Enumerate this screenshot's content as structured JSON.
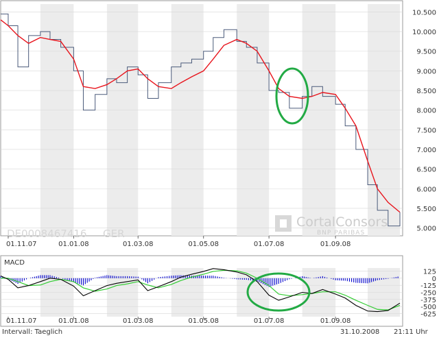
{
  "main_chart": {
    "isin": "DE0008467416",
    "exchange": "GER",
    "logo_brand": "CortalConsors",
    "logo_sub": "BNP PARIBAS",
    "y_ticks": [
      {
        "value": 10500,
        "label": "10.500"
      },
      {
        "value": 10000,
        "label": "10.000"
      },
      {
        "value": 9500,
        "label": "9.500"
      },
      {
        "value": 9000,
        "label": "9.000"
      },
      {
        "value": 8500,
        "label": "8.500"
      },
      {
        "value": 8000,
        "label": "8.000"
      },
      {
        "value": 7500,
        "label": "7.500"
      },
      {
        "value": 7000,
        "label": "7.000"
      },
      {
        "value": 6500,
        "label": "6.500"
      },
      {
        "value": 6000,
        "label": "6.000"
      },
      {
        "value": 5500,
        "label": "5.500"
      },
      {
        "value": 5000,
        "label": "5.000"
      }
    ],
    "x_ticks": [
      "01.11.07",
      "01.01.08",
      "01.03.08",
      "01.05.08",
      "01.07.08",
      "01.09.08"
    ]
  },
  "macd_chart": {
    "title": "MACD",
    "y_ticks": [
      {
        "value": 125,
        "label": "125"
      },
      {
        "value": 0,
        "label": "0"
      },
      {
        "value": -125,
        "label": "-125"
      },
      {
        "value": -250,
        "label": "-250"
      },
      {
        "value": -375,
        "label": "-375"
      },
      {
        "value": -500,
        "label": "-500"
      },
      {
        "value": -625,
        "label": "-625"
      }
    ],
    "x_ticks": [
      "01.11.07",
      "01.01.08",
      "01.03.08",
      "01.05.08",
      "01.07.08",
      "01.09.08"
    ]
  },
  "footer": {
    "interval": "Intervall: Taeglich",
    "date": "31.10.2008",
    "time": "21:11 Uhr"
  },
  "colors": {
    "price": "#4a5a7a",
    "moving_average": "#e8141c",
    "macd": "#000000",
    "signal": "#33cc33",
    "histogram": "#0000cc",
    "annotation": "#22aa44",
    "band": "#ececec"
  },
  "chart_data": [
    {
      "type": "line",
      "series": [
        {
          "x": [
            "2007-10-25",
            "2007-11-01",
            "2007-11-10",
            "2007-11-20",
            "2007-12-01",
            "2007-12-10",
            "2007-12-20",
            "2008-01-01",
            "2008-01-10",
            "2008-01-21",
            "2008-02-01",
            "2008-02-10",
            "2008-02-20",
            "2008-03-01",
            "2008-03-10",
            "2008-03-20",
            "2008-04-01",
            "2008-04-10",
            "2008-04-20",
            "2008-05-01",
            "2008-05-10",
            "2008-05-20",
            "2008-06-01",
            "2008-06-10",
            "2008-06-20",
            "2008-07-01",
            "2008-07-10",
            "2008-07-20",
            "2008-08-01",
            "2008-08-10",
            "2008-08-20",
            "2008-09-01",
            "2008-09-10",
            "2008-09-20",
            "2008-10-01",
            "2008-10-10",
            "2008-10-20",
            "2008-10-31"
          ],
          "values": [
            10450,
            10150,
            9100,
            9900,
            10000,
            9800,
            9600,
            9000,
            8000,
            8400,
            8800,
            8700,
            9100,
            8900,
            8300,
            8700,
            9100,
            9200,
            9300,
            9500,
            9850,
            10050,
            9750,
            9600,
            9200,
            8500,
            8450,
            8050,
            8350,
            8600,
            8350,
            8150,
            7600,
            7000,
            6100,
            5450,
            5050,
            5400
          ]
        },
        {
          "x": [
            "2007-10-25",
            "2007-11-01",
            "2007-11-10",
            "2007-11-20",
            "2007-12-01",
            "2007-12-10",
            "2007-12-20",
            "2008-01-01",
            "2008-01-10",
            "2008-01-21",
            "2008-02-01",
            "2008-02-10",
            "2008-02-20",
            "2008-03-01",
            "2008-03-10",
            "2008-03-20",
            "2008-04-01",
            "2008-04-10",
            "2008-04-20",
            "2008-05-01",
            "2008-05-10",
            "2008-05-20",
            "2008-06-01",
            "2008-06-10",
            "2008-06-20",
            "2008-07-01",
            "2008-07-10",
            "2008-07-20",
            "2008-08-01",
            "2008-08-10",
            "2008-08-20",
            "2008-09-01",
            "2008-09-10",
            "2008-09-20",
            "2008-10-01",
            "2008-10-10",
            "2008-10-20",
            "2008-10-31"
          ],
          "values": [
            10300,
            10150,
            9900,
            9700,
            9850,
            9800,
            9750,
            9300,
            8600,
            8550,
            8650,
            8800,
            9000,
            9050,
            8800,
            8600,
            8550,
            8700,
            8850,
            9000,
            9300,
            9650,
            9800,
            9700,
            9500,
            9000,
            8550,
            8350,
            8300,
            8350,
            8450,
            8400,
            8050,
            7600,
            6700,
            6000,
            5650,
            5400
          ]
        }
      ],
      "y_ticks": [
        10500,
        10000,
        9500,
        9000,
        8500,
        8000,
        7500,
        7000,
        6500,
        6000,
        5500,
        5000
      ],
      "x_tick_labels": [
        "01.11.07",
        "01.01.08",
        "01.03.08",
        "01.05.08",
        "01.07.08",
        "01.09.08"
      ],
      "ylim": [
        4800,
        10700
      ],
      "grid": true
    },
    {
      "type": "line",
      "series": [
        {
          "x": [
            "2007-10-25",
            "2007-11-01",
            "2007-11-10",
            "2007-11-20",
            "2007-12-01",
            "2007-12-10",
            "2007-12-20",
            "2008-01-01",
            "2008-01-10",
            "2008-01-21",
            "2008-02-01",
            "2008-02-10",
            "2008-02-20",
            "2008-03-01",
            "2008-03-10",
            "2008-03-20",
            "2008-04-01",
            "2008-04-10",
            "2008-04-20",
            "2008-05-01",
            "2008-05-10",
            "2008-05-20",
            "2008-06-01",
            "2008-06-10",
            "2008-06-20",
            "2008-07-01",
            "2008-07-10",
            "2008-07-20",
            "2008-08-01",
            "2008-08-10",
            "2008-08-20",
            "2008-09-01",
            "2008-09-10",
            "2008-09-20",
            "2008-10-01",
            "2008-10-10",
            "2008-10-20",
            "2008-10-31"
          ],
          "values": [
            40,
            -20,
            -170,
            -130,
            -60,
            0,
            -20,
            -140,
            -310,
            -220,
            -130,
            -90,
            -60,
            -30,
            -220,
            -150,
            -60,
            20,
            70,
            120,
            170,
            150,
            110,
            60,
            -60,
            -300,
            -390,
            -330,
            -250,
            -270,
            -200,
            -280,
            -350,
            -480,
            -580,
            -590,
            -570,
            -440
          ]
        },
        {
          "x": [
            "2007-10-25",
            "2007-11-01",
            "2007-11-10",
            "2007-11-20",
            "2007-12-01",
            "2007-12-10",
            "2007-12-20",
            "2008-01-01",
            "2008-01-10",
            "2008-01-21",
            "2008-02-01",
            "2008-02-10",
            "2008-02-20",
            "2008-03-01",
            "2008-03-10",
            "2008-03-20",
            "2008-04-01",
            "2008-04-10",
            "2008-04-20",
            "2008-05-01",
            "2008-05-10",
            "2008-05-20",
            "2008-06-01",
            "2008-06-10",
            "2008-06-20",
            "2008-07-01",
            "2008-07-10",
            "2008-07-20",
            "2008-08-01",
            "2008-08-10",
            "2008-08-20",
            "2008-09-01",
            "2008-09-10",
            "2008-09-20",
            "2008-10-01",
            "2008-10-10",
            "2008-10-20",
            "2008-10-31"
          ],
          "values": [
            0,
            0,
            -60,
            -130,
            -120,
            -60,
            -20,
            -60,
            -170,
            -230,
            -190,
            -130,
            -100,
            -60,
            -120,
            -170,
            -110,
            -40,
            20,
            70,
            120,
            140,
            130,
            90,
            0,
            -130,
            -280,
            -310,
            -290,
            -270,
            -240,
            -240,
            -300,
            -390,
            -480,
            -550,
            -560,
            -480
          ]
        }
      ],
      "y_ticks": [
        125,
        0,
        -125,
        -250,
        -375,
        -500,
        -625
      ],
      "x_tick_labels": [
        "01.11.07",
        "01.01.08",
        "01.03.08",
        "01.05.08",
        "01.07.08",
        "01.09.08"
      ],
      "ylim": [
        -680,
        180
      ]
    }
  ]
}
